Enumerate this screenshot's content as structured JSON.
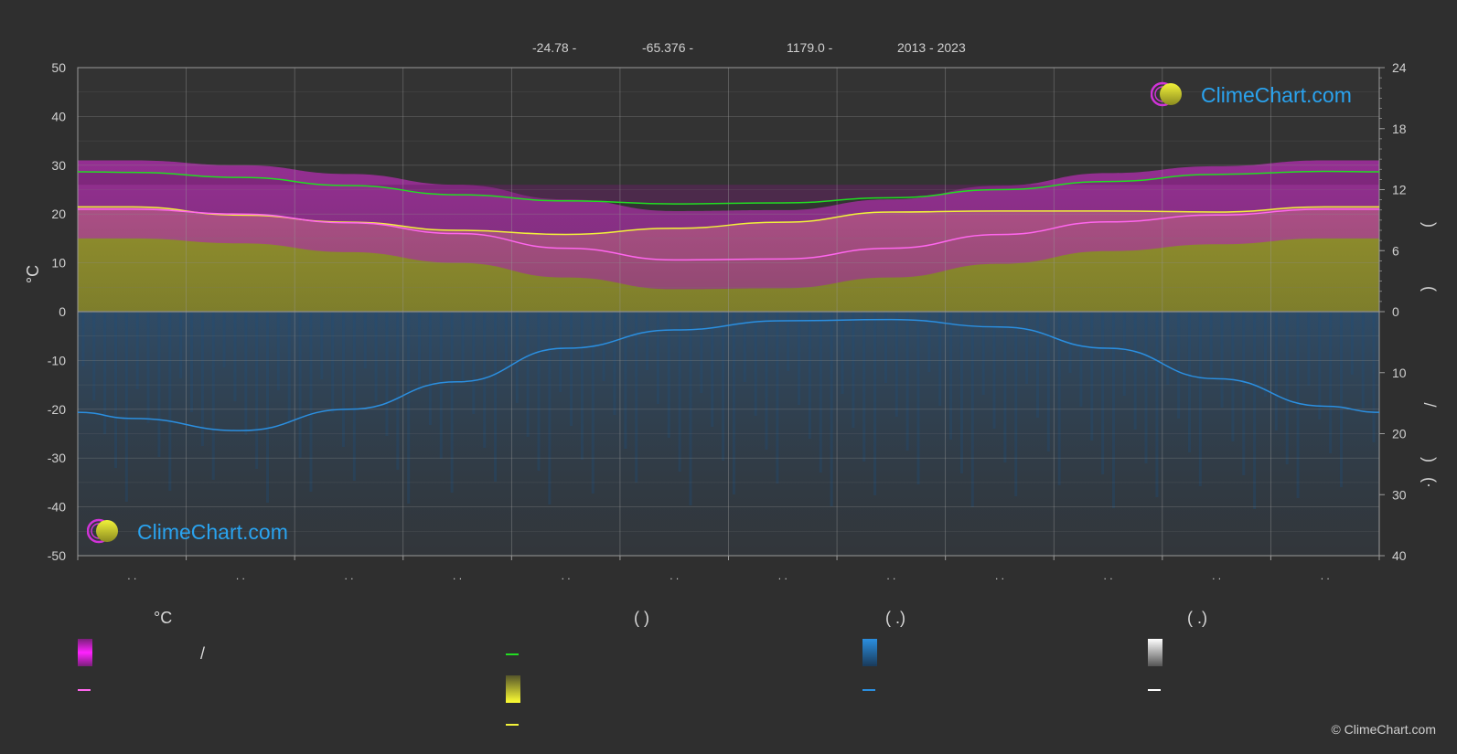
{
  "header": {
    "lat": "-24.78 -",
    "lon": "-65.376 -",
    "elevation": "1179.0 -",
    "years": "2013 - 2023"
  },
  "logo": {
    "text": "ClimeChart.com"
  },
  "copyright": "© ClimeChart.com",
  "colors": {
    "background": "#2f2f2f",
    "daylight": "#22dd22",
    "sunshine": "#f2f23a",
    "temp_mean": "#ff66ee",
    "precip": "#2b8fe0",
    "snow": "#ffffff"
  },
  "chart_data": {
    "type": "area",
    "title": "",
    "x": [
      "Jan",
      "Feb",
      "Mar",
      "Apr",
      "May",
      "Jun",
      "Jul",
      "Aug",
      "Sep",
      "Oct",
      "Nov",
      "Dec"
    ],
    "x_tick_labels": [
      ". .",
      ". .",
      ". .",
      ". .",
      ". .",
      ". .",
      ". .",
      ". .",
      ". .",
      ". .",
      ". .",
      ". ."
    ],
    "left_axis": {
      "label": "°C",
      "range": [
        -50,
        50
      ],
      "ticks": [
        "50",
        "40",
        "30",
        "20",
        "10",
        "0",
        "-10",
        "-20",
        "-30",
        "-40",
        "-50"
      ]
    },
    "right_axis_top": {
      "range": [
        0,
        24
      ],
      "ticks": [
        "24",
        "18",
        "12",
        "6",
        "0"
      ],
      "label_fragments": [
        ")",
        "("
      ]
    },
    "right_axis_bottom": {
      "range": [
        0,
        40
      ],
      "ticks": [
        "0",
        "10",
        "20",
        "30",
        "40"
      ],
      "label_fragments": [
        "/",
        ")",
        "(·"
      ]
    },
    "grid": true,
    "series": [
      {
        "name": "",
        "unit": "h",
        "values": [
          13.7,
          13.2,
          12.4,
          11.5,
          10.9,
          10.6,
          10.7,
          11.2,
          12.0,
          12.8,
          13.5,
          13.8
        ]
      },
      {
        "name": "",
        "unit": "h",
        "values": [
          10.3,
          9.5,
          8.8,
          8.0,
          7.6,
          8.2,
          8.8,
          9.8,
          9.9,
          9.9,
          9.8,
          10.3
        ]
      },
      {
        "name": "",
        "unit": "°C",
        "values": [
          21.0,
          20.0,
          18.2,
          16.0,
          13.0,
          10.6,
          10.8,
          13.0,
          15.8,
          18.4,
          19.8,
          21.0
        ]
      },
      {
        "name": "",
        "unit": "mm",
        "values": [
          17.5,
          19.5,
          16.0,
          11.5,
          6.0,
          3.0,
          1.5,
          1.3,
          2.5,
          6.0,
          11.0,
          15.5
        ]
      }
    ]
  },
  "legend": {
    "col1_head": "°C",
    "col1_items": [
      "/",
      ""
    ],
    "col2_head": "(          )",
    "col3_head": "(   .)",
    "col4_head": "(   .)"
  }
}
